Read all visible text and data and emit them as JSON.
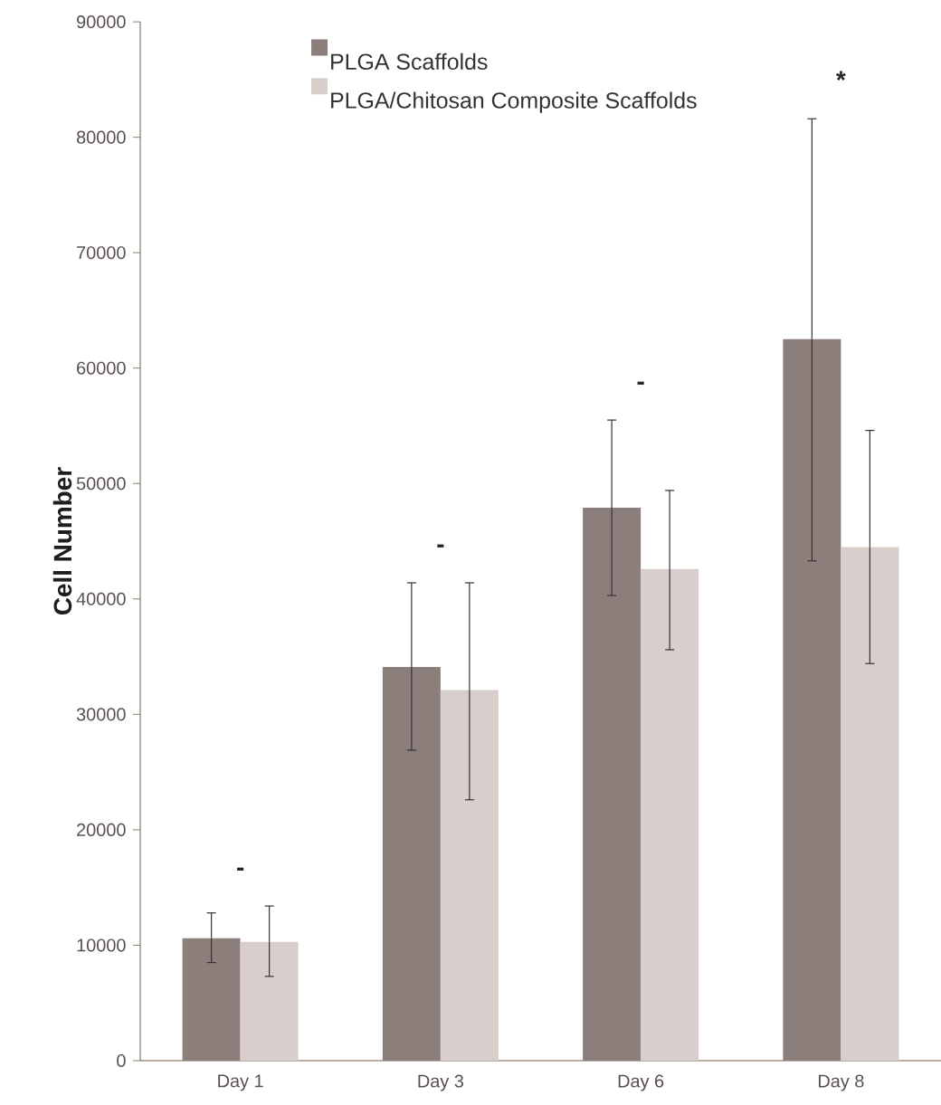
{
  "chart_data": {
    "type": "bar",
    "ylabel": "Cell Number",
    "categories": [
      "Day 1",
      "Day 3",
      "Day 6",
      "Day 8"
    ],
    "series": [
      {
        "name": "PLGA Scaffolds",
        "color": "#8c7f7b",
        "values": [
          10600,
          34100,
          47900,
          62500
        ],
        "errors": [
          [
            8500,
            12800
          ],
          [
            26900,
            41400
          ],
          [
            40300,
            55500
          ],
          [
            43300,
            81600
          ]
        ]
      },
      {
        "name": "PLGA/Chitosan Composite Scaffolds",
        "color": "#d8cfcc",
        "values": [
          10300,
          32100,
          42600,
          44500
        ],
        "errors": [
          [
            7300,
            13400
          ],
          [
            22600,
            41400
          ],
          [
            35600,
            49400
          ],
          [
            34400,
            54600
          ]
        ]
      }
    ],
    "ylim": [
      0,
      90000
    ],
    "yticks": [
      0,
      10000,
      20000,
      30000,
      40000,
      50000,
      60000,
      70000,
      80000,
      90000
    ],
    "legend": "top",
    "annotations": [
      "-",
      "-",
      "-",
      "*"
    ]
  }
}
